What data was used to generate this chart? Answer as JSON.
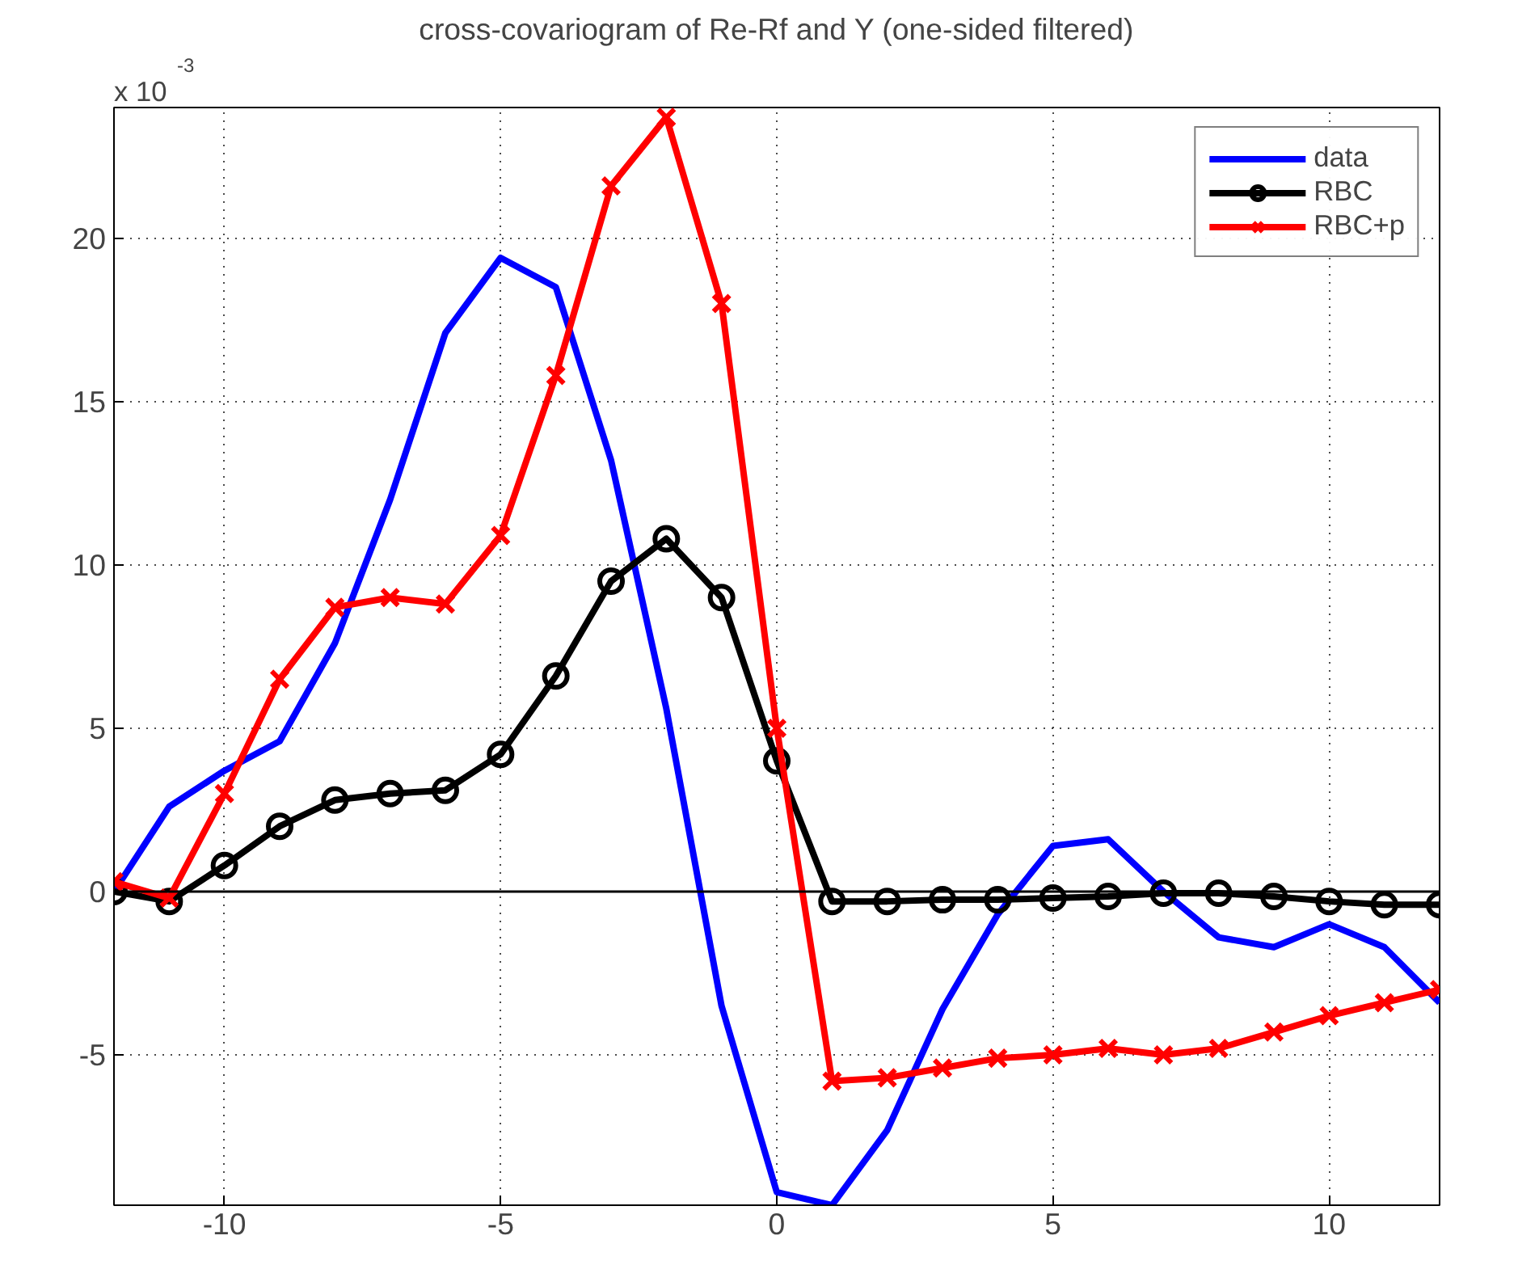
{
  "chart_data": {
    "type": "line",
    "title": "cross-covariogram of Re-Rf and Y (one-sided filtered)",
    "annotations": [
      "x 10$^{-3}$"
    ],
    "x": [
      -12,
      -11,
      -10,
      -9,
      -8,
      -7,
      -6,
      -5,
      -4,
      -3,
      -2,
      -1,
      0,
      1,
      2,
      3,
      4,
      5,
      6,
      7,
      8,
      9,
      10,
      11,
      12
    ],
    "series": [
      {
        "name": "data",
        "color": "#0000ff",
        "marker": "none",
        "values": [
          0,
          2.6,
          3.7,
          4.6,
          7.6,
          12.0,
          17.1,
          19.4,
          18.5,
          13.2,
          5.6,
          -3.5,
          -9.2,
          -9.6,
          -7.3,
          -3.6,
          -0.7,
          1.4,
          1.6,
          0,
          -1.4,
          -1.7,
          -1.0,
          -1.7,
          -3.4
        ]
      },
      {
        "name": "RBC",
        "color": "#000000",
        "marker": "circle",
        "values": [
          0,
          -0.3,
          0.8,
          2.0,
          2.8,
          3.0,
          3.1,
          4.2,
          6.6,
          9.5,
          10.8,
          9.0,
          4.0,
          -0.3,
          -0.3,
          -0.25,
          -0.25,
          -0.2,
          -0.15,
          -0.05,
          -0.05,
          -0.15,
          -0.3,
          -0.4,
          -0.4
        ]
      },
      {
        "name": "RBC+p",
        "color": "#ff0000",
        "marker": "cross",
        "values": [
          0.3,
          -0.2,
          3.0,
          6.5,
          8.7,
          9.0,
          8.8,
          10.9,
          15.8,
          21.6,
          23.7,
          18.0,
          5.0,
          -5.8,
          -5.7,
          -5.4,
          -5.1,
          -5.0,
          -4.8,
          -5.0,
          -4.8,
          -4.3,
          -3.8,
          -3.4,
          -3.0
        ]
      }
    ],
    "xlim": [
      -12,
      12
    ],
    "ylim": [
      -9.6,
      24
    ],
    "xticks": [
      -10,
      -5,
      0,
      5,
      10
    ],
    "yticks": [
      -5,
      0,
      5,
      10,
      15,
      20
    ],
    "ref_lines": [
      {
        "axis": "y",
        "value": 0,
        "color": "#000000"
      }
    ],
    "grid": true,
    "legend": "top right",
    "line_style": "solid"
  }
}
